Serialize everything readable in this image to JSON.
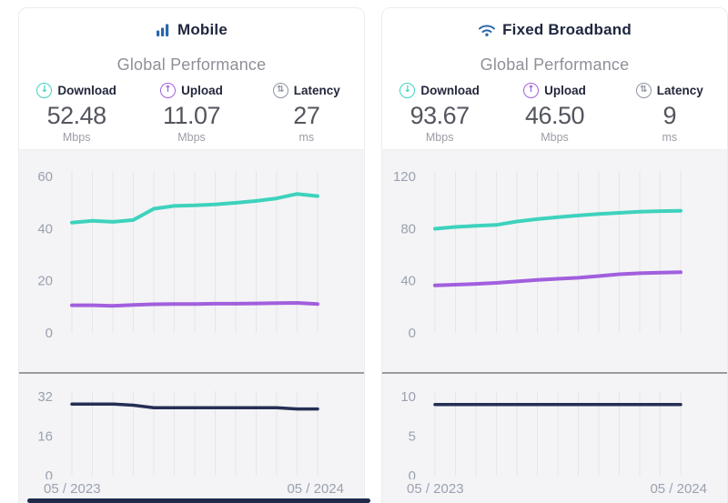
{
  "icons": {
    "download": "↓",
    "upload": "↑",
    "latency": "⇅"
  },
  "colors": {
    "download_line": "#3ed2bd",
    "upload_line": "#a15fdd",
    "latency_line": "#252f54",
    "brand_blue": "#2a66ad",
    "grid": "#e6e6ea",
    "tick_text": "#9aa1af"
  },
  "cards": [
    {
      "title": "Mobile",
      "title_icon": "mobile-signal-bars-icon",
      "subtitle": "Global Performance",
      "metrics": [
        {
          "label": "Download",
          "value": "52.48",
          "unit": "Mbps"
        },
        {
          "label": "Upload",
          "value": "11.07",
          "unit": "Mbps"
        },
        {
          "label": "Latency",
          "value": "27",
          "unit": "ms"
        }
      ],
      "x_start_label": "05 / 2023",
      "x_end_label": "05 / 2024"
    },
    {
      "title": "Fixed Broadband",
      "title_icon": "wifi-icon",
      "subtitle": "Global Performance",
      "metrics": [
        {
          "label": "Download",
          "value": "93.67",
          "unit": "Mbps"
        },
        {
          "label": "Upload",
          "value": "46.50",
          "unit": "Mbps"
        },
        {
          "label": "Latency",
          "value": "9",
          "unit": "ms"
        }
      ],
      "x_start_label": "05 / 2023",
      "x_end_label": "05 / 2024"
    }
  ],
  "chart_data": [
    {
      "id": "mobile-speed",
      "type": "line",
      "title": "Mobile Global Performance — speed over time",
      "x": [
        "05/2023",
        "06/2023",
        "07/2023",
        "08/2023",
        "09/2023",
        "10/2023",
        "11/2023",
        "12/2023",
        "01/2024",
        "02/2024",
        "03/2024",
        "04/2024",
        "05/2024"
      ],
      "ylim": [
        0,
        64
      ],
      "yticks": [
        60,
        40,
        20,
        0
      ],
      "grid": "vertical",
      "legend": "none",
      "series": [
        {
          "name": "Download",
          "unit": "Mbps",
          "color": "#3ed2bd",
          "values": [
            42.3,
            43.0,
            42.6,
            43.3,
            47.6,
            48.7,
            48.9,
            49.3,
            49.9,
            50.6,
            51.6,
            53.3,
            52.48
          ]
        },
        {
          "name": "Upload",
          "unit": "Mbps",
          "color": "#a15fdd",
          "values": [
            10.6,
            10.6,
            10.4,
            10.7,
            11.0,
            11.1,
            11.1,
            11.2,
            11.2,
            11.3,
            11.4,
            11.5,
            11.07
          ]
        }
      ]
    },
    {
      "id": "mobile-latency",
      "type": "line",
      "title": "Mobile Global Performance — latency over time",
      "x": [
        "05/2023",
        "06/2023",
        "07/2023",
        "08/2023",
        "09/2023",
        "10/2023",
        "11/2023",
        "12/2023",
        "01/2024",
        "02/2024",
        "03/2024",
        "04/2024",
        "05/2024"
      ],
      "ylim": [
        0,
        35
      ],
      "yticks": [
        32,
        16,
        0
      ],
      "grid": "vertical",
      "legend": "none",
      "series": [
        {
          "name": "Latency",
          "unit": "ms",
          "color": "#252f54",
          "values": [
            29,
            29,
            29,
            28.5,
            27.5,
            27.5,
            27.5,
            27.5,
            27.5,
            27.5,
            27.5,
            27,
            27
          ]
        }
      ]
    },
    {
      "id": "fixed-broadband-speed",
      "type": "line",
      "title": "Fixed Broadband Global Performance — speed over time",
      "x": [
        "05/2023",
        "06/2023",
        "07/2023",
        "08/2023",
        "09/2023",
        "10/2023",
        "11/2023",
        "12/2023",
        "01/2024",
        "02/2024",
        "03/2024",
        "04/2024",
        "05/2024"
      ],
      "ylim": [
        0,
        128
      ],
      "yticks": [
        120,
        80,
        40,
        0
      ],
      "grid": "vertical",
      "legend": "none",
      "series": [
        {
          "name": "Download",
          "unit": "Mbps",
          "color": "#3ed2bd",
          "values": [
            79.9,
            81.3,
            82.2,
            82.8,
            85.5,
            87.3,
            88.8,
            90.1,
            91.2,
            92.1,
            92.9,
            93.4,
            93.67
          ]
        },
        {
          "name": "Upload",
          "unit": "Mbps",
          "color": "#a15fdd",
          "values": [
            36.4,
            37.0,
            37.6,
            38.4,
            39.5,
            40.6,
            41.5,
            42.3,
            43.6,
            45.0,
            45.8,
            46.2,
            46.5
          ]
        }
      ]
    },
    {
      "id": "fixed-broadband-latency",
      "type": "line",
      "title": "Fixed Broadband Global Performance — latency over time",
      "x": [
        "05/2023",
        "06/2023",
        "07/2023",
        "08/2023",
        "09/2023",
        "10/2023",
        "11/2023",
        "12/2023",
        "01/2024",
        "02/2024",
        "03/2024",
        "04/2024",
        "05/2024"
      ],
      "ylim": [
        0,
        11
      ],
      "yticks": [
        10,
        5,
        0
      ],
      "grid": "vertical",
      "legend": "none",
      "series": [
        {
          "name": "Latency",
          "unit": "ms",
          "color": "#252f54",
          "values": [
            9,
            9,
            9,
            9,
            9,
            9,
            9,
            9,
            9,
            9,
            9,
            9,
            9
          ]
        }
      ]
    }
  ]
}
